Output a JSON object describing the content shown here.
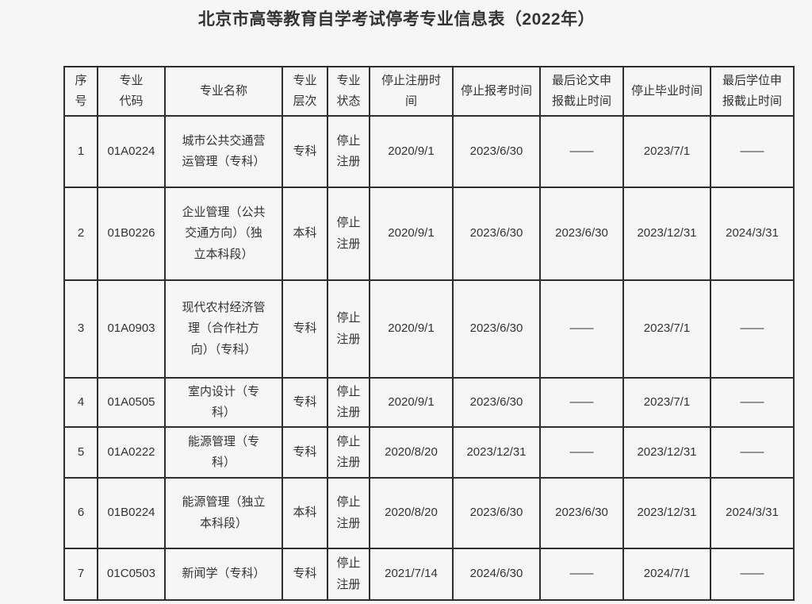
{
  "title": "北京市高等教育自学考试停考专业信息表（2022年）",
  "colors": {
    "text": "#333333",
    "border": "#2e2e2e",
    "page_background": "#f6f6f6"
  },
  "table": {
    "columns": [
      {
        "id": "index",
        "label": "序\n号"
      },
      {
        "id": "major-code",
        "label": "专业\n代码"
      },
      {
        "id": "major-name",
        "label": "专业名称"
      },
      {
        "id": "major-level",
        "label": "专业\n层次"
      },
      {
        "id": "major-status",
        "label": "专业\n状态"
      },
      {
        "id": "stop-registration-time",
        "label": "停止注册时\n间"
      },
      {
        "id": "stop-application-time",
        "label": "停止报考时间"
      },
      {
        "id": "last-thesis-deadline",
        "label": "最后论文申\n报截止时间"
      },
      {
        "id": "stop-graduation-time",
        "label": "停止毕业时间"
      },
      {
        "id": "last-degree-deadline",
        "label": "最后学位申\n报截止时间"
      }
    ],
    "rows": [
      {
        "cells": [
          "1",
          "01A0224",
          "城市公共交通营\n运管理（专科）",
          "专科",
          "停止\n注册",
          "2020/9/1",
          "2023/6/30",
          "——",
          "2023/7/1",
          "——"
        ]
      },
      {
        "cells": [
          "2",
          "01B0226",
          "企业管理（公共\n交通方向）（独\n立本科段）",
          "本科",
          "停止\n注册",
          "2020/9/1",
          "2023/6/30",
          "2023/6/30",
          "2023/12/31",
          "2024/3/31"
        ]
      },
      {
        "cells": [
          "3",
          "01A0903",
          "现代农村经济管\n理（合作社方\n向）（专科）",
          "专科",
          "停止\n注册",
          "2020/9/1",
          "2023/6/30",
          "——",
          "2023/7/1",
          "——"
        ]
      },
      {
        "cells": [
          "4",
          "01A0505",
          "室内设计（专\n科）",
          "专科",
          "停止\n注册",
          "2020/9/1",
          "2023/6/30",
          "——",
          "2023/7/1",
          "——"
        ]
      },
      {
        "cells": [
          "5",
          "01A0222",
          "能源管理（专\n科）",
          "专科",
          "停止\n注册",
          "2020/8/20",
          "2023/12/31",
          "——",
          "2023/12/31",
          "——"
        ]
      },
      {
        "cells": [
          "6",
          "01B0224",
          "能源管理（独立\n本科段）",
          "本科",
          "停止\n注册",
          "2020/8/20",
          "2023/6/30",
          "2023/6/30",
          "2023/12/31",
          "2024/3/31"
        ]
      },
      {
        "cells": [
          "7",
          "01C0503",
          "新闻学（专科）",
          "专科",
          "停止\n注册",
          "2021/7/14",
          "2024/6/30",
          "——",
          "2024/7/1",
          "——"
        ]
      }
    ]
  }
}
